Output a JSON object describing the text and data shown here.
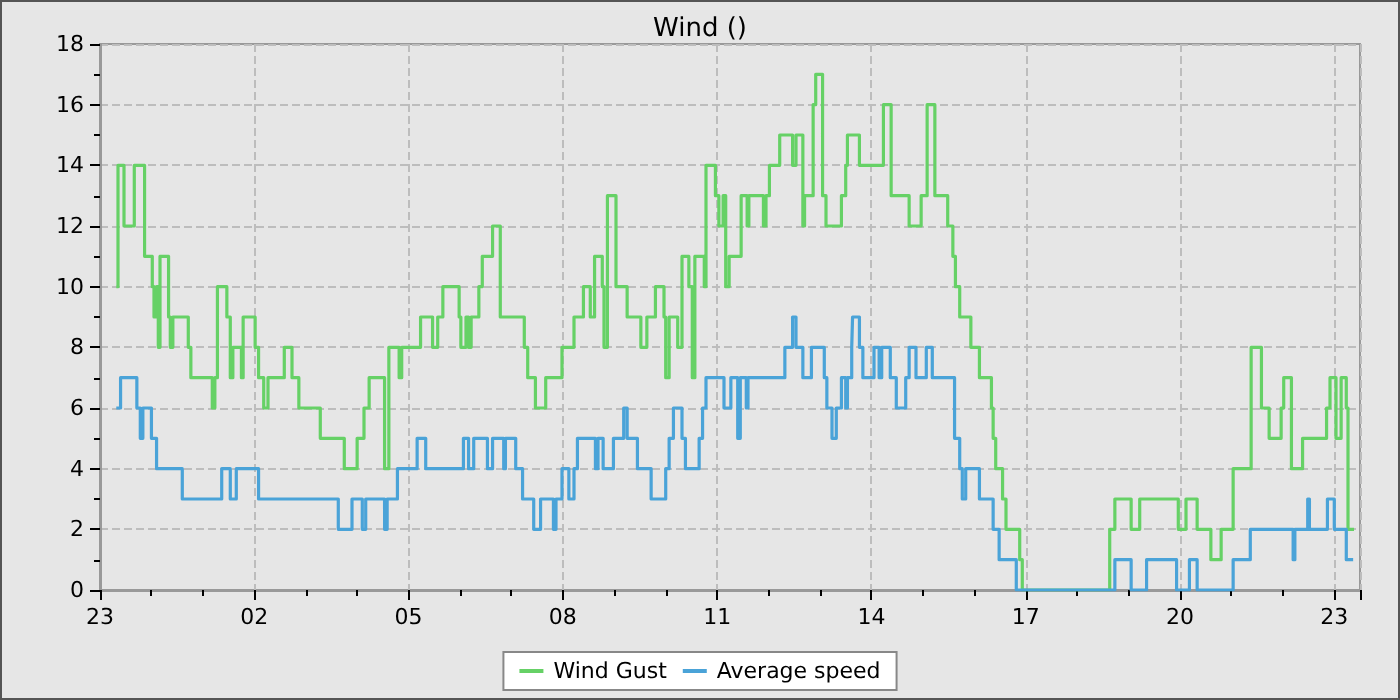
{
  "chart_data": {
    "type": "step",
    "title": "Wind ()",
    "legend": "bottom",
    "grid": true,
    "marker": "none",
    "xlim": [
      "--01-01T23:00",
      "--01-02T23:30"
    ],
    "xticks": [
      {
        "value": "--01-01T23:00",
        "label": "23"
      },
      {
        "value": "--01-02T00:00",
        "label": null
      },
      {
        "value": "--01-02T01:00",
        "label": null
      },
      {
        "value": "--01-02T02:00",
        "label": "02"
      },
      {
        "value": "--01-02T03:00",
        "label": null
      },
      {
        "value": "--01-02T04:00",
        "label": null
      },
      {
        "value": "--01-02T05:00",
        "label": "05"
      },
      {
        "value": "--01-02T06:00",
        "label": null
      },
      {
        "value": "--01-02T07:00",
        "label": null
      },
      {
        "value": "--01-02T08:00",
        "label": "08"
      },
      {
        "value": "--01-02T09:00",
        "label": null
      },
      {
        "value": "--01-02T10:00",
        "label": null
      },
      {
        "value": "--01-02T11:00",
        "label": "11"
      },
      {
        "value": "--01-02T12:00",
        "label": null
      },
      {
        "value": "--01-02T13:00",
        "label": null
      },
      {
        "value": "--01-02T14:00",
        "label": "14"
      },
      {
        "value": "--01-02T15:00",
        "label": null
      },
      {
        "value": "--01-02T16:00",
        "label": null
      },
      {
        "value": "--01-02T17:00",
        "label": "17"
      },
      {
        "value": "--01-02T18:00",
        "label": null
      },
      {
        "value": "--01-02T19:00",
        "label": null
      },
      {
        "value": "--01-02T20:00",
        "label": "20"
      },
      {
        "value": "--01-02T21:00",
        "label": null
      },
      {
        "value": "--01-02T22:00",
        "label": null
      },
      {
        "value": "--01-02T23:00",
        "label": "23"
      }
    ],
    "ylim": [
      0,
      18
    ],
    "yticks": [
      0,
      {
        "value": 1,
        "label": null
      },
      2,
      {
        "value": 3,
        "label": null
      },
      4,
      {
        "value": 5,
        "label": null
      },
      6,
      {
        "value": 7,
        "label": null
      },
      8,
      {
        "value": 9,
        "label": null
      },
      10,
      {
        "value": 11,
        "label": null
      },
      12,
      {
        "value": 13,
        "label": null
      },
      14,
      {
        "value": 15,
        "label": null
      },
      16,
      {
        "value": 17,
        "label": null
      },
      18
    ],
    "series": [
      {
        "name": "Wind Gust",
        "color": "#66d166",
        "x": [
          "--01-01T23:19",
          "--01-01T23:21",
          "--01-01T23:28",
          "--01-01T23:40",
          "--01-01T23:52",
          "--01-02T00:01",
          "--01-02T00:03",
          "--01-02T00:06",
          "--01-02T00:08",
          "--01-02T00:10",
          "--01-02T00:20",
          "--01-02T00:22",
          "--01-02T00:25",
          "--01-02T00:43",
          "--01-02T00:46",
          "--01-02T01:11",
          "--01-02T01:14",
          "--01-02T01:17",
          "--01-02T01:28",
          "--01-02T01:32",
          "--01-02T01:35",
          "--01-02T01:45",
          "--01-02T01:47",
          "--01-02T02:01",
          "--01-02T02:05",
          "--01-02T02:11",
          "--01-02T02:16",
          "--01-02T02:35",
          "--01-02T02:44",
          "--01-02T02:52",
          "--01-02T03:17",
          "--01-02T03:45",
          "--01-02T04:00",
          "--01-02T04:08",
          "--01-02T04:14",
          "--01-02T04:32",
          "--01-02T04:37",
          "--01-02T04:49",
          "--01-02T04:52",
          "--01-02T05:14",
          "--01-02T05:28",
          "--01-02T05:34",
          "--01-02T05:40",
          "--01-02T05:59",
          "--01-02T06:01",
          "--01-02T06:07",
          "--01-02T06:10",
          "--01-02T06:13",
          "--01-02T06:22",
          "--01-02T06:26",
          "--01-02T06:38",
          "--01-02T06:47",
          "--01-02T07:15",
          "--01-02T07:19",
          "--01-02T07:28",
          "--01-02T07:40",
          "--01-02T07:59",
          "--01-02T08:13",
          "--01-02T08:24",
          "--01-02T08:32",
          "--01-02T08:37",
          "--01-02T08:46",
          "--01-02T08:48",
          "--01-02T08:52",
          "--01-02T09:02",
          "--01-02T09:15",
          "--01-02T09:31",
          "--01-02T09:38",
          "--01-02T09:48",
          "--01-02T09:58",
          "--01-02T10:00",
          "--01-02T10:04",
          "--01-02T10:14",
          "--01-02T10:19",
          "--01-02T10:27",
          "--01-02T10:31",
          "--01-02T10:34",
          "--01-02T10:45",
          "--01-02T10:47",
          "--01-02T10:58",
          "--01-02T11:02",
          "--01-02T11:07",
          "--01-02T11:10",
          "--01-02T11:14",
          "--01-02T11:28",
          "--01-02T11:35",
          "--01-02T11:37",
          "--01-02T11:54",
          "--01-02T11:57",
          "--01-02T12:01",
          "--01-02T12:13",
          "--01-02T12:28",
          "--01-02T12:32",
          "--01-02T12:40",
          "--01-02T12:42",
          "--01-02T12:52",
          "--01-02T12:55",
          "--01-02T13:03",
          "--01-02T13:07",
          "--01-02T13:25",
          "--01-02T13:30",
          "--01-02T13:32",
          "--01-02T13:46",
          "--01-02T14:14",
          "--01-02T14:23",
          "--01-02T14:44",
          "--01-02T14:58",
          "--01-02T15:05",
          "--01-02T15:14",
          "--01-02T15:29",
          "--01-02T15:35",
          "--01-02T15:38",
          "--01-02T15:43",
          "--01-02T15:56",
          "--01-02T16:06",
          "--01-02T16:20",
          "--01-02T16:22",
          "--01-02T16:25",
          "--01-02T16:33",
          "--01-02T16:37",
          "--01-02T16:53",
          "--01-02T16:56",
          "--01-02T18:38",
          "--01-02T18:44",
          "--01-02T19:03",
          "--01-02T19:13",
          "--01-02T19:58",
          "--01-02T20:07",
          "--01-02T20:20",
          "--01-02T20:36",
          "--01-02T20:48",
          "--01-02T21:02",
          "--01-02T21:23",
          "--01-02T21:35",
          "--01-02T21:44",
          "--01-02T21:58",
          "--01-02T22:01",
          "--01-02T22:10",
          "--01-02T22:23",
          "--01-02T22:51",
          "--01-02T22:55",
          "--01-02T23:02",
          "--01-02T23:08",
          "--01-02T23:14",
          "--01-02T23:16",
          "--01-02T23:23"
        ],
        "values": [
          10,
          14,
          12,
          14,
          11,
          10,
          9,
          10,
          8,
          11,
          9,
          8,
          9,
          8,
          7,
          6,
          7,
          10,
          9,
          7,
          8,
          7,
          9,
          8,
          7,
          6,
          7,
          8,
          7,
          6,
          5,
          4,
          5,
          6,
          7,
          4,
          8,
          7,
          8,
          9,
          8,
          9,
          10,
          9,
          8,
          9,
          8,
          9,
          10,
          11,
          12,
          9,
          8,
          7,
          6,
          7,
          8,
          9,
          10,
          9,
          11,
          10,
          8,
          13,
          10,
          9,
          8,
          9,
          10,
          9,
          7,
          9,
          8,
          11,
          10,
          7,
          11,
          10,
          14,
          13,
          12,
          13,
          10,
          11,
          13,
          12,
          13,
          12,
          13,
          14,
          15,
          14,
          15,
          12,
          13,
          16,
          17,
          13,
          12,
          13,
          14,
          15,
          14,
          16,
          13,
          12,
          13,
          16,
          13,
          12,
          11,
          10,
          9,
          8,
          7,
          6,
          5,
          4,
          3,
          2,
          1,
          0,
          2,
          3,
          2,
          3,
          2,
          3,
          2,
          1,
          2,
          4,
          8,
          6,
          5,
          6,
          7,
          4,
          5,
          6,
          7,
          5,
          7,
          6,
          2,
          2
        ]
      },
      {
        "name": "Average speed",
        "color": "#4aa3d8",
        "x": [
          "--01-01T23:19",
          "--01-01T23:24",
          "--01-01T23:43",
          "--01-01T23:47",
          "--01-01T23:50",
          "--01-02T00:00",
          "--01-02T00:06",
          "--01-02T00:36",
          "--01-02T01:22",
          "--01-02T01:32",
          "--01-02T01:39",
          "--01-02T02:05",
          "--01-02T03:38",
          "--01-02T03:54",
          "--01-02T04:06",
          "--01-02T04:10",
          "--01-02T04:32",
          "--01-02T04:35",
          "--01-02T04:47",
          "--01-02T05:10",
          "--01-02T05:20",
          "--01-02T06:04",
          "--01-02T06:10",
          "--01-02T06:16",
          "--01-02T06:32",
          "--01-02T06:38",
          "--01-02T06:51",
          "--01-02T06:53",
          "--01-02T07:05",
          "--01-02T07:13",
          "--01-02T07:26",
          "--01-02T07:34",
          "--01-02T07:49",
          "--01-02T07:52",
          "--01-02T07:59",
          "--01-02T08:07",
          "--01-02T08:13",
          "--01-02T08:17",
          "--01-02T08:38",
          "--01-02T08:41",
          "--01-02T08:47",
          "--01-02T08:59",
          "--01-02T09:11",
          "--01-02T09:15",
          "--01-02T09:27",
          "--01-02T09:43",
          "--01-02T10:00",
          "--01-02T10:04",
          "--01-02T10:09",
          "--01-02T10:19",
          "--01-02T10:23",
          "--01-02T10:39",
          "--01-02T10:43",
          "--01-02T10:47",
          "--01-02T11:08",
          "--01-02T11:16",
          "--01-02T11:24",
          "--01-02T11:27",
          "--01-02T11:34",
          "--01-02T11:36",
          "--01-02T12:19",
          "--01-02T12:28",
          "--01-02T12:32",
          "--01-02T12:40",
          "--01-02T12:50",
          "--01-02T13:05",
          "--01-02T13:08",
          "--01-02T13:14",
          "--01-02T13:19",
          "--01-02T13:25",
          "--01-02T13:30",
          "--01-02T13:32",
          "--01-02T13:37",
          "--01-02T13:38",
          "--01-02T13:46",
          "--01-02T13:50",
          "--01-02T14:03",
          "--01-02T14:09",
          "--01-02T14:12",
          "--01-02T14:22",
          "--01-02T14:29",
          "--01-02T14:40",
          "--01-02T14:44",
          "--01-02T14:52",
          "--01-02T15:04",
          "--01-02T15:11",
          "--01-02T15:37",
          "--01-02T15:43",
          "--01-02T15:46",
          "--01-02T15:50",
          "--01-02T16:06",
          "--01-02T16:22",
          "--01-02T16:29",
          "--01-02T16:49",
          "--01-02T18:44",
          "--01-02T19:03",
          "--01-02T19:21",
          "--01-02T19:56",
          "--01-02T20:11",
          "--01-02T20:20",
          "--01-02T21:02",
          "--01-02T21:22",
          "--01-02T22:12",
          "--01-02T22:14",
          "--01-02T22:29",
          "--01-02T22:31",
          "--01-02T22:52",
          "--01-02T23:00",
          "--01-02T23:14",
          "--01-02T23:22"
        ],
        "values": [
          6,
          7,
          6,
          5,
          6,
          5,
          4,
          3,
          4,
          3,
          4,
          3,
          2,
          3,
          2,
          3,
          2,
          3,
          4,
          5,
          4,
          5,
          4,
          5,
          4,
          5,
          4,
          5,
          4,
          3,
          2,
          3,
          2,
          3,
          4,
          3,
          4,
          5,
          4,
          5,
          4,
          5,
          6,
          5,
          4,
          3,
          4,
          5,
          6,
          5,
          4,
          5,
          6,
          7,
          6,
          7,
          5,
          7,
          6,
          7,
          8,
          9,
          8,
          7,
          8,
          7,
          6,
          5,
          6,
          7,
          6,
          7,
          8,
          9,
          8,
          7,
          8,
          7,
          8,
          7,
          6,
          7,
          8,
          7,
          8,
          7,
          5,
          4,
          3,
          4,
          3,
          2,
          1,
          0,
          1,
          0,
          1,
          0,
          1,
          0,
          1,
          2,
          1,
          2,
          3,
          2,
          3,
          2,
          1,
          1
        ]
      }
    ]
  }
}
